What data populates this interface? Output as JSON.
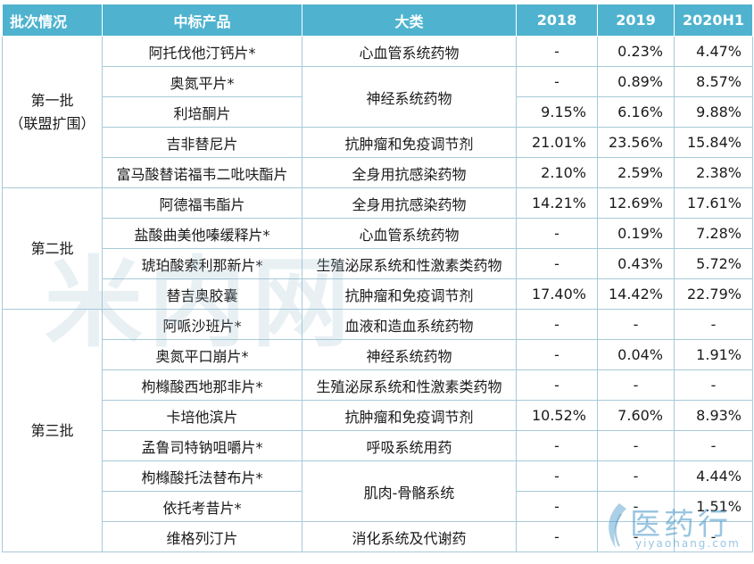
{
  "table": {
    "headers": [
      "批次情况",
      "中标产品",
      "大类",
      "2018",
      "2019",
      "2020H1"
    ],
    "batches": [
      "第一批\n（联盟扩围）",
      "第二批",
      "第三批"
    ],
    "rows": [
      {
        "product": "阿托伐他汀钙片*",
        "category": "心血管系统药物",
        "y2018": "-",
        "y2019": "0.23%",
        "y2020h1": "4.47%"
      },
      {
        "product": "奥氮平片*",
        "category": "神经系统药物",
        "y2018": "-",
        "y2019": "0.89%",
        "y2020h1": "8.57%"
      },
      {
        "product": "利培酮片",
        "category": "",
        "y2018": "9.15%",
        "y2019": "6.16%",
        "y2020h1": "9.88%"
      },
      {
        "product": "吉非替尼片",
        "category": "抗肿瘤和免疫调节剂",
        "y2018": "21.01%",
        "y2019": "23.56%",
        "y2020h1": "15.84%"
      },
      {
        "product": "富马酸替诺福韦二吡呋酯片",
        "category": "全身用抗感染药物",
        "y2018": "2.10%",
        "y2019": "2.59%",
        "y2020h1": "2.38%"
      },
      {
        "product": "阿德福韦酯片",
        "category": "全身用抗感染药物",
        "y2018": "14.21%",
        "y2019": "12.69%",
        "y2020h1": "17.61%"
      },
      {
        "product": "盐酸曲美他嗪缓释片*",
        "category": "心血管系统药物",
        "y2018": "-",
        "y2019": "0.19%",
        "y2020h1": "7.28%"
      },
      {
        "product": "琥珀酸索利那新片*",
        "category": "生殖泌尿系统和性激素类药物",
        "y2018": "-",
        "y2019": "0.43%",
        "y2020h1": "5.72%"
      },
      {
        "product": "替吉奥胶囊",
        "category": "抗肿瘤和免疫调节剂",
        "y2018": "17.40%",
        "y2019": "14.42%",
        "y2020h1": "22.79%"
      },
      {
        "product": "阿哌沙班片*",
        "category": "血液和造血系统药物",
        "y2018": "-",
        "y2019": "-",
        "y2020h1": "-"
      },
      {
        "product": "奥氮平口崩片*",
        "category": "神经系统药物",
        "y2018": "-",
        "y2019": "0.04%",
        "y2020h1": "1.91%"
      },
      {
        "product": "枸橼酸西地那非片*",
        "category": "生殖泌尿系统和性激素类药物",
        "y2018": "-",
        "y2019": "-",
        "y2020h1": "-"
      },
      {
        "product": "卡培他滨片",
        "category": "抗肿瘤和免疫调节剂",
        "y2018": "10.52%",
        "y2019": "7.60%",
        "y2020h1": "8.93%"
      },
      {
        "product": "孟鲁司特钠咀嚼片*",
        "category": "呼吸系统用药",
        "y2018": "-",
        "y2019": "-",
        "y2020h1": "-"
      },
      {
        "product": "枸橼酸托法替布片*",
        "category": "肌肉-骨骼系统",
        "y2018": "-",
        "y2019": "-",
        "y2020h1": "4.44%"
      },
      {
        "product": "依托考昔片*",
        "category": "",
        "y2018": "-",
        "y2019": "-",
        "y2020h1": "1.51%"
      },
      {
        "product": "维格列汀片",
        "category": "消化系统及代谢药",
        "y2018": "-",
        "y2019": "-",
        "y2020h1": "-"
      }
    ]
  },
  "watermark": {
    "text": "米内网"
  },
  "logo": {
    "name": "医药行",
    "domain": "yiyaohang.com"
  },
  "colors": {
    "header_bg": "#4fb3cf",
    "header_text": "#ffffff",
    "border": "#a7cad8"
  }
}
